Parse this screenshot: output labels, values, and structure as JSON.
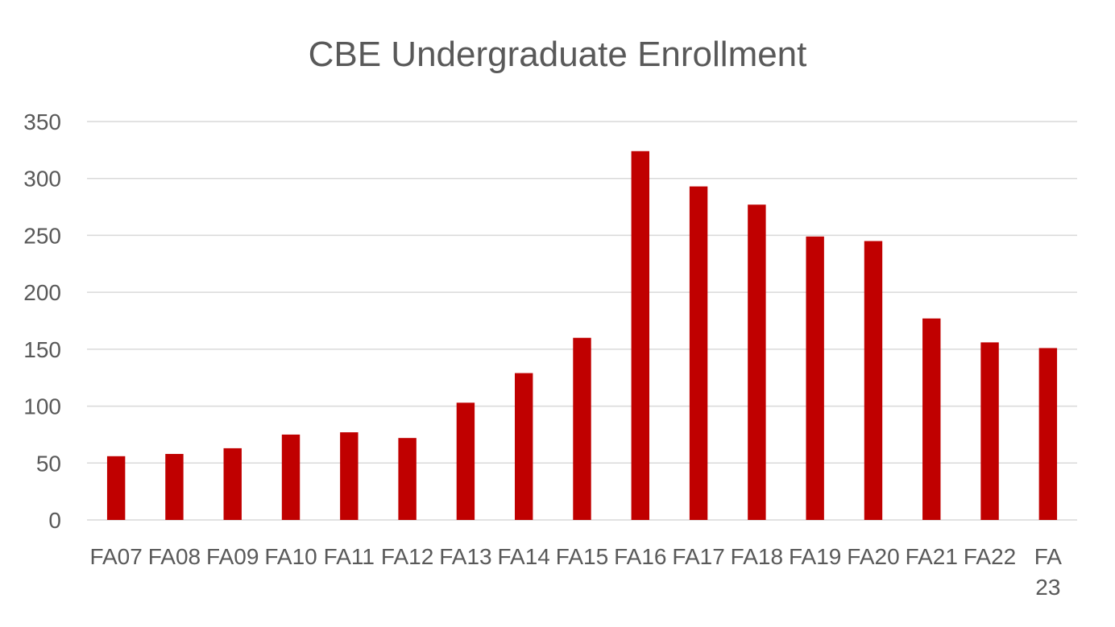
{
  "chart_data": {
    "type": "bar",
    "title": "CBE Undergraduate Enrollment",
    "xlabel": "",
    "ylabel": "",
    "categories": [
      "FA07",
      "FA08",
      "FA09",
      "FA10",
      "FA11",
      "FA12",
      "FA13",
      "FA14",
      "FA15",
      "FA16",
      "FA17",
      "FA18",
      "FA19",
      "FA20",
      "FA21",
      "FA22",
      "FA 23"
    ],
    "values": [
      56,
      58,
      63,
      75,
      77,
      72,
      103,
      129,
      160,
      324,
      293,
      277,
      249,
      245,
      177,
      156,
      151
    ],
    "ylim": [
      0,
      350
    ],
    "yticks": [
      0,
      50,
      100,
      150,
      200,
      250,
      300,
      350
    ],
    "grid": true,
    "legend": "none",
    "colors": {
      "bar": "#c00000",
      "grid": "#d9d9d9",
      "text": "#595959"
    }
  }
}
